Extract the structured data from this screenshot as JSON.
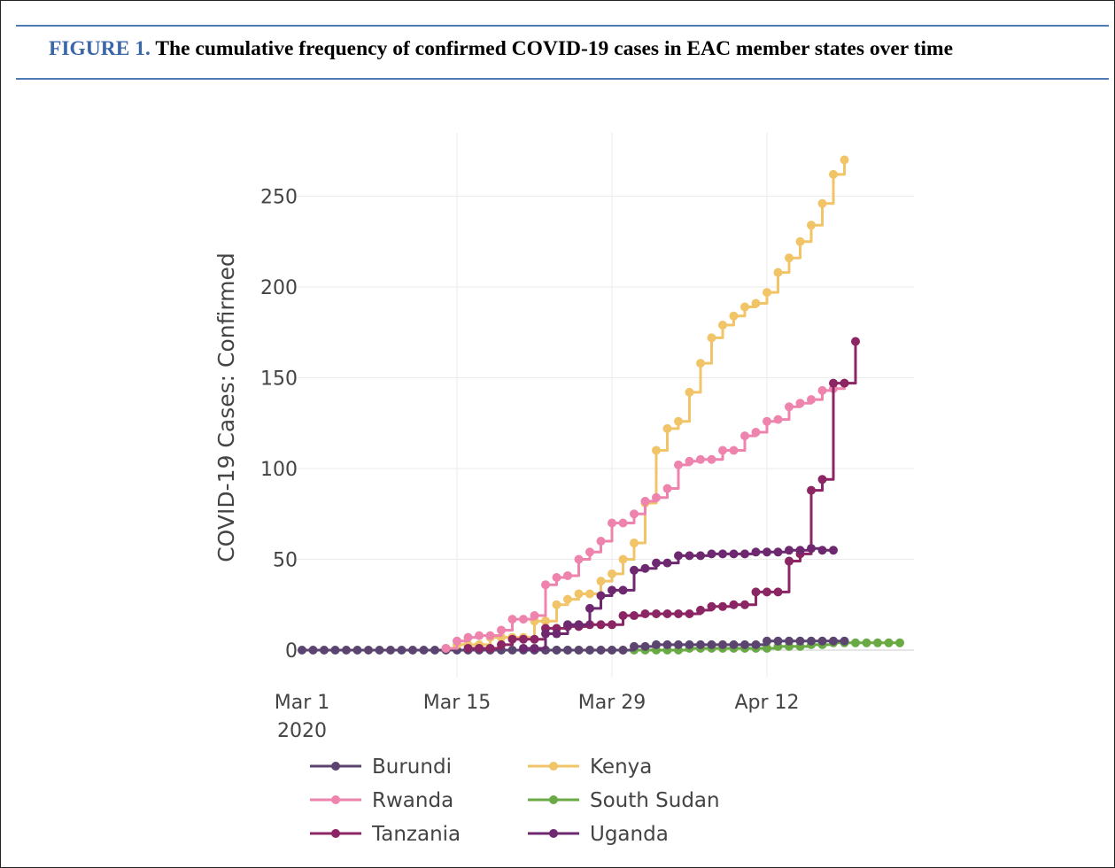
{
  "figure": {
    "label": "FIGURE 1.",
    "title": "The cumulative frequency of confirmed COVID-19 cases in EAC member states over time"
  },
  "chart_data": {
    "type": "line",
    "title": "",
    "xlabel": "",
    "ylabel": "COVID-19 Cases: Confirmed",
    "x_start": "Mar 1 2020",
    "x_ticks": [
      {
        "label": "Mar 1",
        "sublabel": "2020",
        "day": 0
      },
      {
        "label": "Mar 15",
        "sublabel": "",
        "day": 14
      },
      {
        "label": "Mar 29",
        "sublabel": "",
        "day": 28
      },
      {
        "label": "Apr 12",
        "sublabel": "",
        "day": 42
      }
    ],
    "xlim": [
      0,
      55
    ],
    "ylim": [
      -5,
      280
    ],
    "y_ticks": [
      0,
      50,
      100,
      150,
      200,
      250
    ],
    "grid": true,
    "legend_position": "bottom",
    "series": [
      {
        "name": "Burundi",
        "color": "#5b4570",
        "start_day": 0,
        "values": [
          0,
          0,
          0,
          0,
          0,
          0,
          0,
          0,
          0,
          0,
          0,
          0,
          0,
          0,
          0,
          0,
          0,
          0,
          0,
          0,
          0,
          0,
          0,
          0,
          0,
          0,
          0,
          0,
          0,
          0,
          2,
          2,
          3,
          3,
          3,
          3,
          3,
          3,
          3,
          3,
          3,
          3,
          5,
          5,
          5,
          5,
          5,
          5,
          5,
          5
        ]
      },
      {
        "name": "Kenya",
        "color": "#f0c467",
        "start_day": 13,
        "values": [
          1,
          3,
          3,
          3,
          7,
          7,
          7,
          7,
          16,
          16,
          25,
          28,
          31,
          31,
          38,
          42,
          50,
          59,
          81,
          110,
          122,
          126,
          142,
          158,
          172,
          179,
          184,
          189,
          191,
          197,
          208,
          216,
          225,
          234,
          246,
          262,
          270
        ]
      },
      {
        "name": "Rwanda",
        "color": "#ee84ad",
        "start_day": 13,
        "values": [
          1,
          5,
          7,
          8,
          8,
          11,
          17,
          17,
          19,
          36,
          40,
          41,
          50,
          54,
          60,
          70,
          70,
          75,
          82,
          84,
          89,
          102,
          104,
          105,
          105,
          110,
          110,
          118,
          120,
          126,
          127,
          134,
          136,
          138,
          143,
          144,
          147
        ]
      },
      {
        "name": "South Sudan",
        "color": "#6aaa45",
        "start_day": 21,
        "values": [
          0,
          0,
          0,
          0,
          0,
          0,
          0,
          0,
          0,
          0,
          0,
          0,
          0,
          0,
          1,
          1,
          1,
          1,
          1,
          1,
          1,
          1,
          2,
          2,
          2,
          3,
          3,
          4,
          4,
          4,
          4,
          4,
          4,
          4
        ]
      },
      {
        "name": "Tanzania",
        "color": "#8b2563",
        "start_day": 15,
        "values": [
          1,
          1,
          1,
          3,
          6,
          6,
          6,
          12,
          12,
          13,
          13,
          14,
          14,
          14,
          19,
          19,
          20,
          20,
          20,
          20,
          20,
          22,
          24,
          24,
          25,
          25,
          32,
          32,
          32,
          49,
          53,
          88,
          94,
          147,
          147,
          170
        ]
      },
      {
        "name": "Uganda",
        "color": "#6e2870",
        "start_day": 20,
        "values": [
          1,
          1,
          9,
          9,
          14,
          14,
          23,
          30,
          33,
          33,
          44,
          45,
          48,
          48,
          52,
          52,
          52,
          53,
          53,
          53,
          53,
          54,
          54,
          54,
          55,
          55,
          56,
          55,
          55
        ]
      }
    ]
  }
}
